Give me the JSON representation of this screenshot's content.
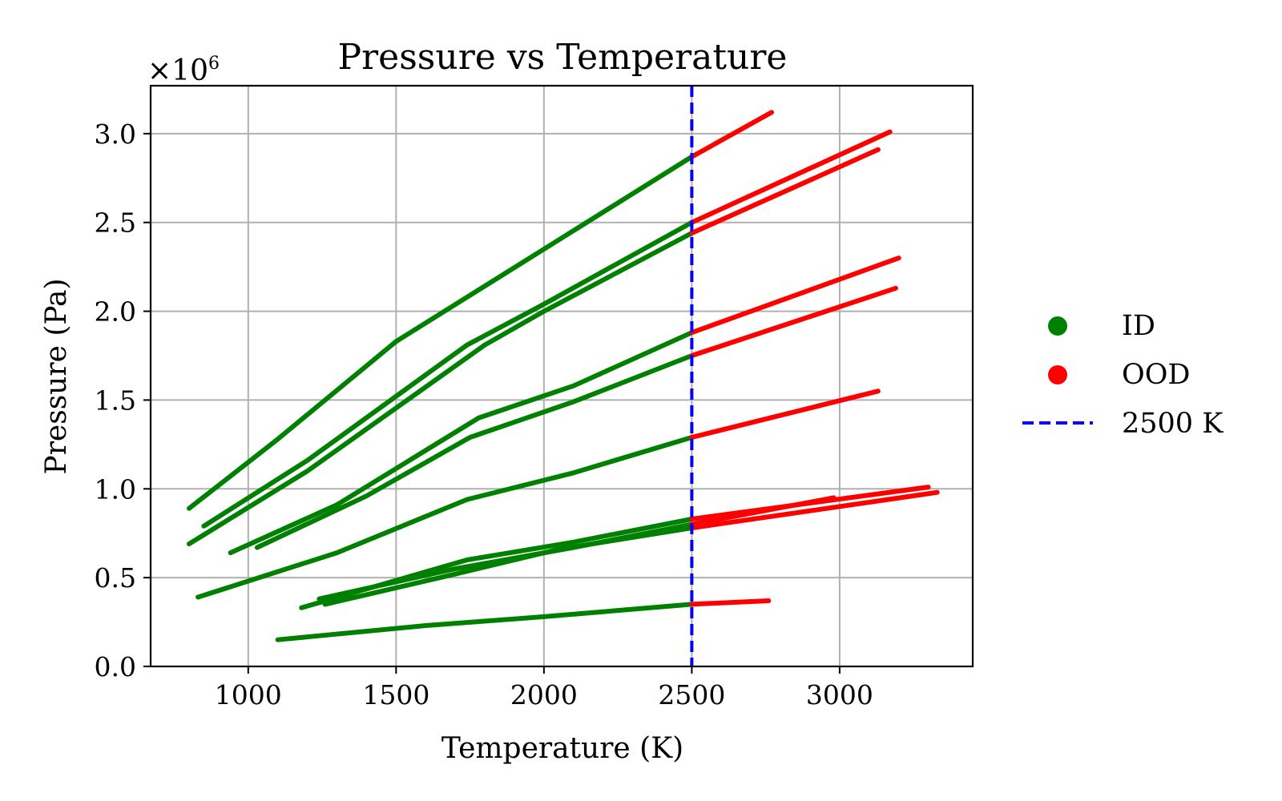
{
  "chart_data": {
    "type": "line",
    "title": "Pressure vs Temperature",
    "xlabel": "Temperature (K)",
    "ylabel": "Pressure (Pa)",
    "y_multiplier_label": "×10",
    "y_multiplier_exponent": "6",
    "xlim": [
      670,
      3450
    ],
    "ylim": [
      0,
      3.27
    ],
    "x_ticks": [
      1000,
      1500,
      2000,
      2500,
      3000
    ],
    "x_tick_labels": [
      "1000",
      "1500",
      "2000",
      "2500",
      "3000"
    ],
    "y_ticks": [
      0.0,
      0.5,
      1.0,
      1.5,
      2.0,
      2.5,
      3.0
    ],
    "y_tick_labels": [
      "0.0",
      "0.5",
      "1.0",
      "1.5",
      "2.0",
      "2.5",
      "3.0"
    ],
    "grid": true,
    "legend_position": "right",
    "threshold": {
      "x": 2500,
      "label": "2500 K",
      "color": "#0000ff"
    },
    "series_styles": [
      {
        "name": "ID",
        "color": "#008000"
      },
      {
        "name": "OOD",
        "color": "#ff0000"
      }
    ],
    "curves": [
      {
        "points": [
          [
            800,
            0.89
          ],
          [
            1100,
            1.28
          ],
          [
            1500,
            1.83
          ],
          [
            2000,
            2.35
          ],
          [
            2500,
            2.87
          ],
          [
            2770,
            3.12
          ]
        ]
      },
      {
        "points": [
          [
            850,
            0.79
          ],
          [
            1200,
            1.16
          ],
          [
            1740,
            1.81
          ],
          [
            2000,
            2.04
          ],
          [
            2500,
            2.5
          ],
          [
            3170,
            3.01
          ]
        ]
      },
      {
        "points": [
          [
            800,
            0.69
          ],
          [
            1200,
            1.1
          ],
          [
            1800,
            1.81
          ],
          [
            2000,
            2.0
          ],
          [
            2500,
            2.44
          ],
          [
            3130,
            2.91
          ]
        ]
      },
      {
        "points": [
          [
            940,
            0.64
          ],
          [
            1300,
            0.91
          ],
          [
            1780,
            1.4
          ],
          [
            2100,
            1.58
          ],
          [
            2500,
            1.88
          ],
          [
            3200,
            2.3
          ]
        ]
      },
      {
        "points": [
          [
            1030,
            0.67
          ],
          [
            1400,
            0.96
          ],
          [
            1750,
            1.29
          ],
          [
            2100,
            1.49
          ],
          [
            2500,
            1.75
          ],
          [
            3190,
            2.13
          ]
        ]
      },
      {
        "points": [
          [
            830,
            0.39
          ],
          [
            1300,
            0.64
          ],
          [
            1740,
            0.94
          ],
          [
            2100,
            1.09
          ],
          [
            2500,
            1.29
          ],
          [
            3130,
            1.55
          ]
        ]
      },
      {
        "points": [
          [
            1180,
            0.33
          ],
          [
            1740,
            0.6
          ],
          [
            2100,
            0.7
          ],
          [
            2500,
            0.83
          ],
          [
            3300,
            1.01
          ]
        ]
      },
      {
        "points": [
          [
            1240,
            0.38
          ],
          [
            1700,
            0.55
          ],
          [
            2100,
            0.67
          ],
          [
            2500,
            0.8
          ],
          [
            2980,
            0.95
          ]
        ]
      },
      {
        "points": [
          [
            1260,
            0.35
          ],
          [
            1700,
            0.52
          ],
          [
            2050,
            0.66
          ],
          [
            2500,
            0.78
          ],
          [
            3330,
            0.98
          ]
        ]
      },
      {
        "points": [
          [
            1100,
            0.15
          ],
          [
            1600,
            0.23
          ],
          [
            2000,
            0.28
          ],
          [
            2500,
            0.35
          ],
          [
            2760,
            0.37
          ]
        ]
      }
    ]
  }
}
